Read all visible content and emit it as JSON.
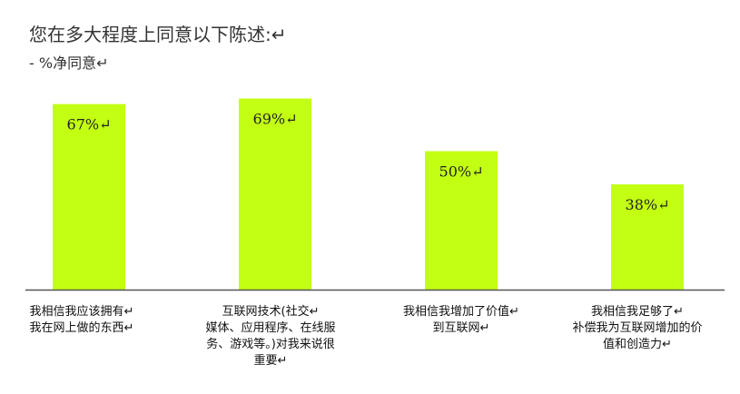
{
  "chart_data": {
    "type": "bar",
    "title": "您在多大程度上同意以下陈述:↵",
    "subtitle": "- %净同意↵",
    "categories": [
      "我相信我应该拥有↵ 我在网上做的东西↵",
      "互联网技术(社交↵ 媒体、应用程序、在线服务、游戏等。)对我来说很重要↵",
      "我相信我增加了价值↵ 到互联网↵",
      "我相信我足够了↵ 补偿我为互联网增加的价值和创造力↵"
    ],
    "category_lines": [
      [
        "我相信我应该拥有↵",
        "我在网上做的东西↵"
      ],
      [
        "互联网技术(社交↵",
        "媒体、应用程序、在线服",
        "务、游戏等。)对我来说很",
        "重要↵"
      ],
      [
        "我相信我增加了价值↵",
        "到互联网↵"
      ],
      [
        "我相信我足够了↵",
        "补偿我为互联网增加的价",
        "值和创造力↵"
      ]
    ],
    "values": [
      67,
      69,
      50,
      38
    ],
    "value_labels": [
      "67%↵",
      "69%↵",
      "50%↵",
      "38%↵"
    ],
    "ylim": [
      0,
      75
    ],
    "bar_color": "#c3ff13",
    "axis_color": "#555555",
    "grid": false,
    "legend": "none"
  }
}
